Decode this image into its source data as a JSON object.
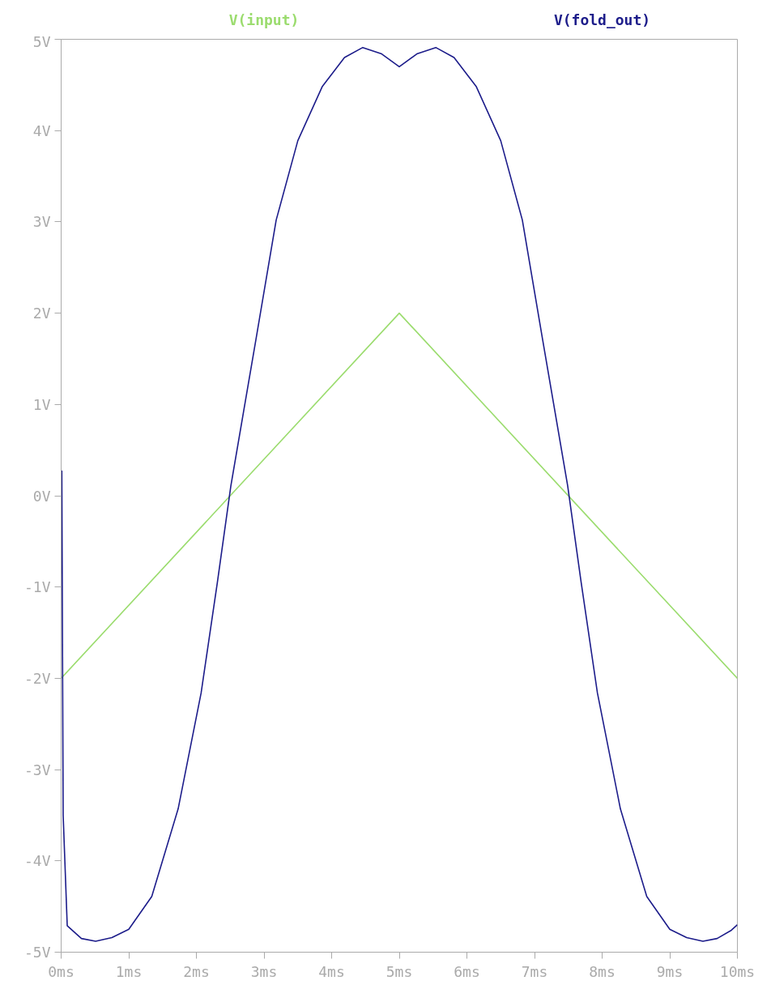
{
  "chart_data": {
    "type": "line",
    "grid": false,
    "line_style": "solid",
    "marker": "none",
    "x": [
      0,
      5,
      10
    ],
    "xlim": [
      0,
      10
    ],
    "ylim": [
      -5,
      5
    ],
    "xticks": [
      {
        "value": 0,
        "label": "0ms"
      },
      {
        "value": 1,
        "label": "1ms"
      },
      {
        "value": 2,
        "label": "2ms"
      },
      {
        "value": 3,
        "label": "3ms"
      },
      {
        "value": 4,
        "label": "4ms"
      },
      {
        "value": 5,
        "label": "5ms"
      },
      {
        "value": 6,
        "label": "6ms"
      },
      {
        "value": 7,
        "label": "7ms"
      },
      {
        "value": 8,
        "label": "8ms"
      },
      {
        "value": 9,
        "label": "9ms"
      },
      {
        "value": 10,
        "label": "10ms"
      }
    ],
    "yticks": [
      {
        "value": -5,
        "label": "-5V"
      },
      {
        "value": -4,
        "label": "-4V"
      },
      {
        "value": -3,
        "label": "-3V"
      },
      {
        "value": -2,
        "label": "-2V"
      },
      {
        "value": -1,
        "label": "-1V"
      },
      {
        "value": 0,
        "label": "0V"
      },
      {
        "value": 1,
        "label": "1V"
      },
      {
        "value": 2,
        "label": "2V"
      },
      {
        "value": 3,
        "label": "3V"
      },
      {
        "value": 4,
        "label": "4V"
      },
      {
        "value": 5,
        "label": "5V"
      }
    ],
    "series": [
      {
        "name": "V(input)",
        "color": "#9bdc6e",
        "values": [
          -2,
          2,
          -2
        ]
      },
      {
        "name": "V(fold_out)",
        "color": "#1c1c8a",
        "x": [
          0,
          0.01,
          0.03,
          0.09,
          0.3,
          0.51,
          0.75,
          1.0,
          1.34,
          1.73,
          2.07,
          2.31,
          2.51,
          2.88,
          3.18,
          3.5,
          3.86,
          4.19,
          4.46,
          4.74,
          5.0,
          5.26,
          5.54,
          5.81,
          6.14,
          6.5,
          6.82,
          7.12,
          7.49,
          7.69,
          7.93,
          8.27,
          8.66,
          9.0,
          9.25,
          9.49,
          9.7,
          9.91,
          10
        ],
        "values": [
          0,
          0.27,
          -3.5,
          -4.71,
          -4.85,
          -4.88,
          -4.84,
          -4.75,
          -4.39,
          -3.43,
          -2.16,
          -0.95,
          0.11,
          1.71,
          3.02,
          3.89,
          4.48,
          4.8,
          4.91,
          4.84,
          4.7,
          4.84,
          4.91,
          4.8,
          4.48,
          3.89,
          3.02,
          1.71,
          0.11,
          -0.95,
          -2.16,
          -3.43,
          -4.39,
          -4.75,
          -4.84,
          -4.88,
          -4.85,
          -4.76,
          -4.7
        ]
      }
    ]
  }
}
